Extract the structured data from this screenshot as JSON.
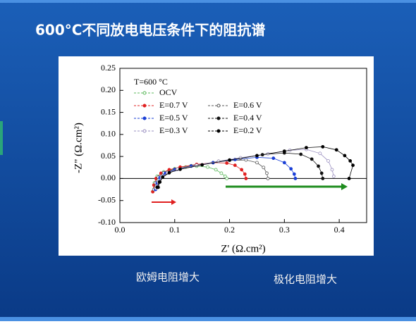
{
  "chart_data": {
    "type": "line",
    "title": "600°C不同放电电压条件下的阻抗谱",
    "x_label": "Z' (Ω.cm²)",
    "y_label": "-Z\" (Ω.cm²)",
    "legend_title": "T=600 °C",
    "annotations": [
      "欧姆电阻增大",
      "极化电阻增大"
    ],
    "xlim": [
      0,
      0.45
    ],
    "ylim": [
      -0.1,
      0.25
    ],
    "xticks": [
      {
        "value": 0,
        "label": "0.0"
      },
      0.1,
      0.2,
      0.3,
      0.4
    ],
    "yticks": [
      {
        "value": -0.1,
        "label": "-0.10"
      },
      -0.05,
      {
        "value": 0,
        "label": "0.00"
      },
      0.05,
      {
        "value": 0.1,
        "label": "0.10"
      },
      0.15,
      {
        "value": 0.2,
        "label": "0.20"
      },
      0.25
    ],
    "series": [
      {
        "name": "OCV",
        "color": "#5cb85c",
        "marker": "open",
        "x": [
          0.06,
          0.063,
          0.068,
          0.08,
          0.1,
          0.12,
          0.14,
          0.16,
          0.175,
          0.185,
          0.192,
          0.195
        ],
        "values": [
          -0.03,
          -0.01,
          0.005,
          0.015,
          0.022,
          0.026,
          0.028,
          0.026,
          0.02,
          0.012,
          0.005,
          0.0
        ]
      },
      {
        "name": "E=0.7 V",
        "color": "#e02020",
        "marker": "filled",
        "x": [
          0.06,
          0.062,
          0.066,
          0.075,
          0.09,
          0.11,
          0.14,
          0.17,
          0.195,
          0.21,
          0.222,
          0.228,
          0.23
        ],
        "values": [
          -0.03,
          -0.015,
          0.0,
          0.012,
          0.02,
          0.026,
          0.032,
          0.036,
          0.035,
          0.03,
          0.02,
          0.01,
          0.0
        ]
      },
      {
        "name": "E=0.6 V",
        "color": "#555555",
        "marker": "open",
        "x": [
          0.062,
          0.065,
          0.07,
          0.08,
          0.1,
          0.13,
          0.17,
          0.2,
          0.23,
          0.25,
          0.262,
          0.268,
          0.27
        ],
        "values": [
          -0.025,
          -0.01,
          0.003,
          0.013,
          0.021,
          0.029,
          0.036,
          0.041,
          0.042,
          0.036,
          0.025,
          0.012,
          0.0
        ]
      },
      {
        "name": "E=0.5 V",
        "color": "#1a3fd6",
        "marker": "filled",
        "x": [
          0.065,
          0.068,
          0.073,
          0.083,
          0.1,
          0.13,
          0.17,
          0.21,
          0.25,
          0.28,
          0.3,
          0.312,
          0.318,
          0.32
        ],
        "values": [
          -0.025,
          -0.01,
          0.002,
          0.012,
          0.02,
          0.028,
          0.036,
          0.043,
          0.048,
          0.046,
          0.036,
          0.022,
          0.01,
          0.0
        ]
      },
      {
        "name": "E=0.4 V",
        "color": "#111111",
        "marker": "filled",
        "x": [
          0.07,
          0.073,
          0.078,
          0.088,
          0.105,
          0.14,
          0.18,
          0.22,
          0.26,
          0.3,
          0.33,
          0.35,
          0.362,
          0.368,
          0.37
        ],
        "values": [
          -0.02,
          -0.008,
          0.003,
          0.013,
          0.021,
          0.03,
          0.039,
          0.046,
          0.054,
          0.058,
          0.055,
          0.044,
          0.028,
          0.012,
          0.0
        ]
      },
      {
        "name": "E=0.3 V",
        "color": "#9a8fc0",
        "marker": "open",
        "x": [
          0.066,
          0.07,
          0.076,
          0.087,
          0.105,
          0.14,
          0.18,
          0.22,
          0.27,
          0.31,
          0.34,
          0.365,
          0.38,
          0.387,
          0.39
        ],
        "values": [
          -0.022,
          -0.008,
          0.003,
          0.013,
          0.021,
          0.03,
          0.039,
          0.047,
          0.056,
          0.064,
          0.066,
          0.057,
          0.04,
          0.02,
          0.005
        ]
      },
      {
        "name": "E=0.2 V",
        "color": "#000000",
        "marker": "filled",
        "x": [
          0.068,
          0.072,
          0.078,
          0.09,
          0.11,
          0.15,
          0.2,
          0.25,
          0.3,
          0.34,
          0.37,
          0.395,
          0.41,
          0.42,
          0.425,
          0.418
        ],
        "values": [
          -0.02,
          -0.008,
          0.003,
          0.013,
          0.021,
          0.031,
          0.042,
          0.052,
          0.062,
          0.07,
          0.072,
          0.065,
          0.052,
          0.04,
          0.03,
          0.0
        ]
      }
    ]
  }
}
